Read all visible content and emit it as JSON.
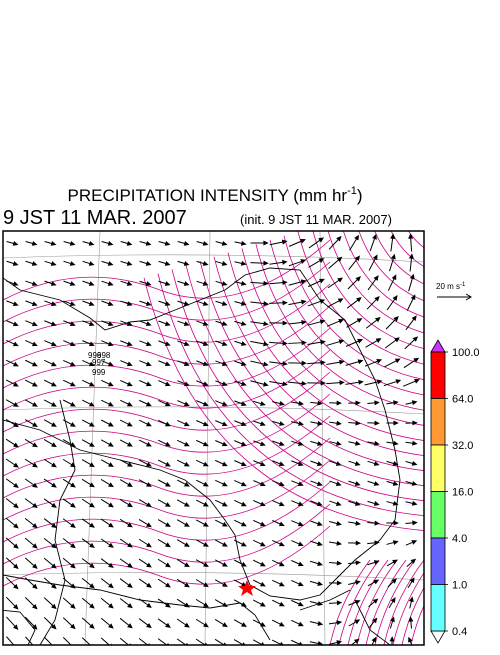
{
  "title": {
    "text": "PRECIPITATION INTENSITY (mm hr",
    "superscript": "-1",
    "suffix": ")"
  },
  "valid_time": "9 JST 11 MAR. 2007",
  "init_time": "(init. 9 JST 11 MAR. 2007)",
  "reference_vector": {
    "text": "20 m s",
    "superscript": "-1"
  },
  "colorbar": {
    "ticks": [
      {
        "value": 100,
        "label": "100.0"
      },
      {
        "value": 64,
        "label": "64.0"
      },
      {
        "value": 32,
        "label": "32.0"
      },
      {
        "value": 16,
        "label": "16.0"
      },
      {
        "value": 4,
        "label": "4.0"
      },
      {
        "value": 1,
        "label": "1.0"
      },
      {
        "value": 0.4,
        "label": "0.4"
      }
    ],
    "colors": [
      "#ff0000",
      "#ff9933",
      "#ffff66",
      "#66ff66",
      "#6666ff",
      "#66ffff"
    ],
    "over_color": "#cc33ff",
    "under_color": "#ffffff"
  },
  "contour_labels": [
    "996",
    "997",
    "998",
    "999"
  ]
}
